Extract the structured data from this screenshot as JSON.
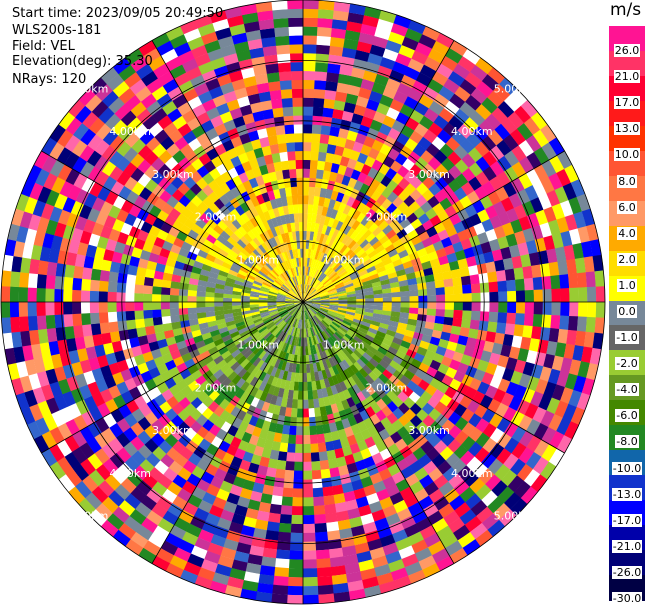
{
  "info": {
    "start_time": "Start time: 2023/09/05 20:49:50",
    "site": "WLS200s-181",
    "field": "Field: VEL",
    "elevation": "Elevation(deg): 35.30",
    "nrays": "NRays: 120"
  },
  "colorbar": {
    "unit": "m/s",
    "ticks": [
      "26.0",
      "21.0",
      "17.0",
      "13.0",
      "10.0",
      "8.0",
      "6.0",
      "4.0",
      "2.0",
      "1.0",
      "0.0",
      "-1.0",
      "-2.0",
      "-4.0",
      "-6.0",
      "-8.0",
      "-10.0",
      "-13.0",
      "-17.0",
      "-21.0",
      "-26.0",
      "-30.0"
    ],
    "colors": [
      "#ff1493",
      "#ff3366",
      "#ff0033",
      "#ff1a1a",
      "#ff3300",
      "#ff5533",
      "#ff7744",
      "#ff9966",
      "#ffaa00",
      "#ffdd00",
      "#ffff00",
      "#778899",
      "#666666",
      "#99cc33",
      "#669922",
      "#448800",
      "#228822",
      "#1166aa",
      "#1133cc",
      "#0000ff",
      "#0000aa",
      "#000077",
      "#000044"
    ]
  },
  "chart_data": {
    "type": "heatmap",
    "title": "",
    "field": "VEL",
    "unit": "m/s",
    "elevation_deg": 35.3,
    "nrays": 120,
    "range_rings_km": [
      1.0,
      2.0,
      3.0,
      4.0,
      5.0
    ],
    "ring_labels": [
      "1.00km",
      "2.00km",
      "3.00km",
      "4.00km",
      "5.00km"
    ],
    "max_range_km": 5.0,
    "colorbar_ticks": [
      26.0,
      21.0,
      17.0,
      13.0,
      10.0,
      8.0,
      6.0,
      4.0,
      2.0,
      1.0,
      0.0,
      -1.0,
      -2.0,
      -4.0,
      -6.0,
      -8.0,
      -10.0,
      -13.0,
      -17.0,
      -21.0,
      -26.0,
      -30.0
    ],
    "vmin": -30.0,
    "vmax": 30.0,
    "grid": true
  }
}
